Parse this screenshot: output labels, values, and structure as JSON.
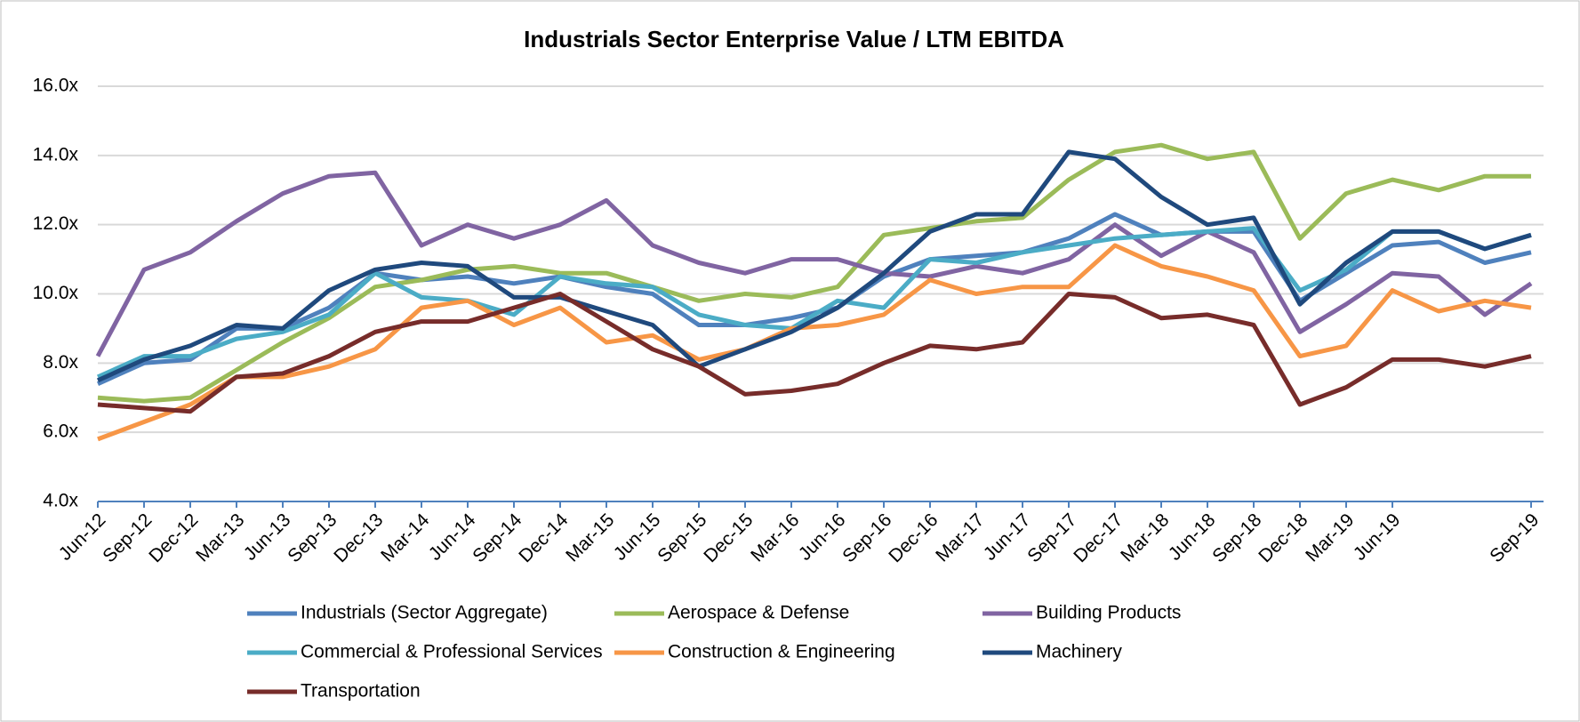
{
  "chart_data": {
    "type": "line",
    "title": "Industrials Sector Enterprise Value  / LTM EBITDA",
    "categories": [
      "Jun-12",
      "Sep-12",
      "Dec-12",
      "Mar-13",
      "Jun-13",
      "Sep-13",
      "Dec-13",
      "Mar-14",
      "Jun-14",
      "Sep-14",
      "Dec-14",
      "Mar-15",
      "Jun-15",
      "Sep-15",
      "Dec-15",
      "Mar-16",
      "Jun-16",
      "Sep-16",
      "Dec-16",
      "Mar-17",
      "Jun-17",
      "Sep-17",
      "Dec-17",
      "Mar-18",
      "Jun-18",
      "Sep-18",
      "Dec-18",
      "Mar-19",
      "Jun-19",
      null,
      null,
      "Sep-19"
    ],
    "series": [
      {
        "name": "Industrials (Sector Aggregate)",
        "color": "#4f81bd",
        "values": [
          7.4,
          8.0,
          8.1,
          9.0,
          9.0,
          9.6,
          10.6,
          10.4,
          10.5,
          10.3,
          10.5,
          10.2,
          10.0,
          9.1,
          9.1,
          9.3,
          9.6,
          10.5,
          11.0,
          11.1,
          11.2,
          11.6,
          12.3,
          11.7,
          11.8,
          11.8,
          9.8,
          10.6,
          11.4,
          11.5,
          10.9,
          11.2
        ]
      },
      {
        "name": "Aerospace & Defense",
        "color": "#9bbb59",
        "values": [
          7.0,
          6.9,
          7.0,
          7.8,
          8.6,
          9.3,
          10.2,
          10.4,
          10.7,
          10.8,
          10.6,
          10.6,
          10.2,
          9.8,
          10.0,
          9.9,
          10.2,
          11.7,
          11.9,
          12.1,
          12.2,
          13.3,
          14.1,
          14.3,
          13.9,
          14.1,
          11.6,
          12.9,
          13.3,
          13.0,
          13.4,
          13.4
        ]
      },
      {
        "name": "Building Products",
        "color": "#8064a2",
        "values": [
          8.2,
          10.7,
          11.2,
          12.1,
          12.9,
          13.4,
          13.5,
          11.4,
          12.0,
          11.6,
          12.0,
          12.7,
          11.4,
          10.9,
          10.6,
          11.0,
          11.0,
          10.6,
          10.5,
          10.8,
          10.6,
          11.0,
          12.0,
          11.1,
          11.8,
          11.2,
          8.9,
          9.7,
          10.6,
          10.5,
          9.4,
          10.3
        ]
      },
      {
        "name": "Commercial & Professional Services",
        "color": "#4bacc6",
        "values": [
          7.6,
          8.2,
          8.2,
          8.7,
          8.9,
          9.4,
          10.6,
          9.9,
          9.8,
          9.4,
          10.5,
          10.3,
          10.2,
          9.4,
          9.1,
          9.0,
          9.8,
          9.6,
          11.0,
          10.9,
          11.2,
          11.4,
          11.6,
          11.7,
          11.8,
          11.9,
          10.1,
          10.7,
          11.8,
          11.8,
          11.3,
          11.7
        ]
      },
      {
        "name": "Construction & Engineering",
        "color": "#f79646",
        "values": [
          5.8,
          6.3,
          6.8,
          7.6,
          7.6,
          7.9,
          8.4,
          9.6,
          9.8,
          9.1,
          9.6,
          8.6,
          8.8,
          8.1,
          8.4,
          9.0,
          9.1,
          9.4,
          10.4,
          10.0,
          10.2,
          10.2,
          11.4,
          10.8,
          10.5,
          10.1,
          8.2,
          8.5,
          10.1,
          9.5,
          9.8,
          9.6
        ]
      },
      {
        "name": "Machinery",
        "color": "#1f497d",
        "values": [
          7.5,
          8.1,
          8.5,
          9.1,
          9.0,
          10.1,
          10.7,
          10.9,
          10.8,
          9.9,
          9.9,
          9.5,
          9.1,
          7.9,
          8.4,
          8.9,
          9.6,
          10.6,
          11.8,
          12.3,
          12.3,
          14.1,
          13.9,
          12.8,
          12.0,
          12.2,
          9.7,
          10.9,
          11.8,
          11.8,
          11.3,
          11.7
        ]
      },
      {
        "name": "Transportation",
        "color": "#772c2a",
        "values": [
          6.8,
          6.7,
          6.6,
          7.6,
          7.7,
          8.2,
          8.9,
          9.2,
          9.2,
          9.6,
          10.0,
          9.2,
          8.4,
          7.9,
          7.1,
          7.2,
          7.4,
          8.0,
          8.5,
          8.4,
          8.6,
          10.0,
          9.9,
          9.3,
          9.4,
          9.1,
          6.8,
          7.3,
          8.1,
          8.1,
          7.9,
          8.2
        ]
      }
    ],
    "ylim": [
      4,
      16
    ],
    "yticks": [
      {
        "value": 4,
        "label": "4.0x"
      },
      {
        "value": 6,
        "label": "6.0x"
      },
      {
        "value": 8,
        "label": "8.0x"
      },
      {
        "value": 10,
        "label": "10.0x"
      },
      {
        "value": 12,
        "label": "12.0x"
      },
      {
        "value": 14,
        "label": "14.0x"
      },
      {
        "value": 16,
        "label": "16.0x"
      }
    ],
    "grid": true,
    "legend": "bottom"
  }
}
